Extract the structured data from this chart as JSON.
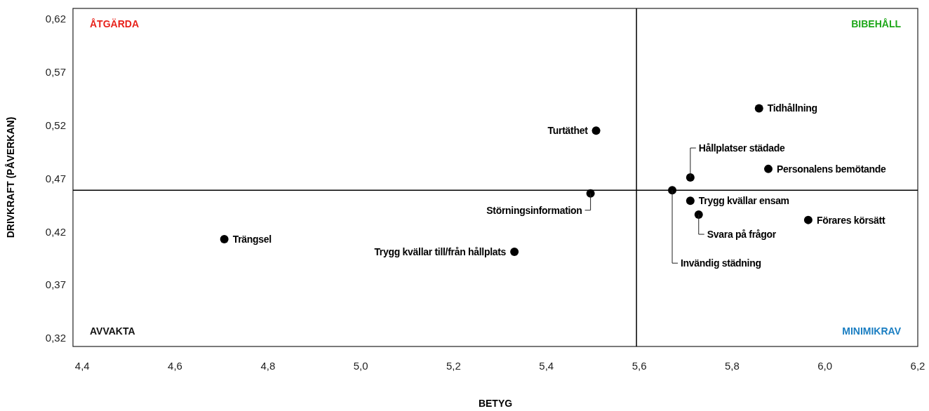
{
  "chart_data": {
    "type": "scatter",
    "xlabel": "BETYG",
    "ylabel": "DRIVKRAFT (PÅVERKAN)",
    "xlim": [
      4.38,
      6.2
    ],
    "ylim": [
      0.312,
      0.63
    ],
    "xticks": [
      {
        "value": 4.4,
        "label": "4,4"
      },
      {
        "value": 4.6,
        "label": "4,6"
      },
      {
        "value": 4.8,
        "label": "4,8"
      },
      {
        "value": 5.0,
        "label": "5,0"
      },
      {
        "value": 5.2,
        "label": "5,2"
      },
      {
        "value": 5.4,
        "label": "5,4"
      },
      {
        "value": 5.6,
        "label": "5,6"
      },
      {
        "value": 5.8,
        "label": "5,8"
      },
      {
        "value": 6.0,
        "label": "6,0"
      },
      {
        "value": 6.2,
        "label": "6,2"
      }
    ],
    "yticks": [
      {
        "value": 0.32,
        "label": "0,32"
      },
      {
        "value": 0.37,
        "label": "0,37"
      },
      {
        "value": 0.42,
        "label": "0,42"
      },
      {
        "value": 0.47,
        "label": "0,47"
      },
      {
        "value": 0.52,
        "label": "0,52"
      },
      {
        "value": 0.57,
        "label": "0,57"
      },
      {
        "value": 0.62,
        "label": "0,62"
      }
    ],
    "grid": false,
    "marker": "circle",
    "series": [
      {
        "color": "#000000",
        "x": [
          4.706,
          5.331,
          5.495,
          5.507,
          5.858,
          5.71,
          5.878,
          5.671,
          5.71,
          5.728,
          5.964
        ],
        "values": [
          0.413,
          0.401,
          0.456,
          0.515,
          0.536,
          0.471,
          0.479,
          0.459,
          0.449,
          0.436,
          0.431
        ]
      }
    ],
    "ref_lines": [
      {
        "axis": "x",
        "value": 5.594,
        "color": "#000000"
      },
      {
        "axis": "y",
        "value": 0.459,
        "color": "#000000"
      }
    ],
    "annotations": [
      {
        "text": "Trängsel",
        "x": 4.706,
        "y": 0.413
      },
      {
        "text": "Trygg kvällar till/från hållplats",
        "x": 5.331,
        "y": 0.401
      },
      {
        "text": "Störningsinformation",
        "x": 5.495,
        "y": 0.456
      },
      {
        "text": "Turtäthet",
        "x": 5.507,
        "y": 0.515
      },
      {
        "text": "Tidhållning",
        "x": 5.858,
        "y": 0.536
      },
      {
        "text": "Hållplatser städade",
        "x": 5.71,
        "y": 0.471
      },
      {
        "text": "Personalens bemötande",
        "x": 5.878,
        "y": 0.479
      },
      {
        "text": "Invändig städning",
        "x": 5.671,
        "y": 0.459
      },
      {
        "text": "Trygg kvällar ensam",
        "x": 5.71,
        "y": 0.449
      },
      {
        "text": "Svara på frågor",
        "x": 5.728,
        "y": 0.436
      },
      {
        "text": "Förares körsätt",
        "x": 5.964,
        "y": 0.431
      },
      "ÅTGÄRDA",
      "BIBEHÅLL",
      "AVVAKTA",
      "MINIMIKRAV"
    ]
  }
}
